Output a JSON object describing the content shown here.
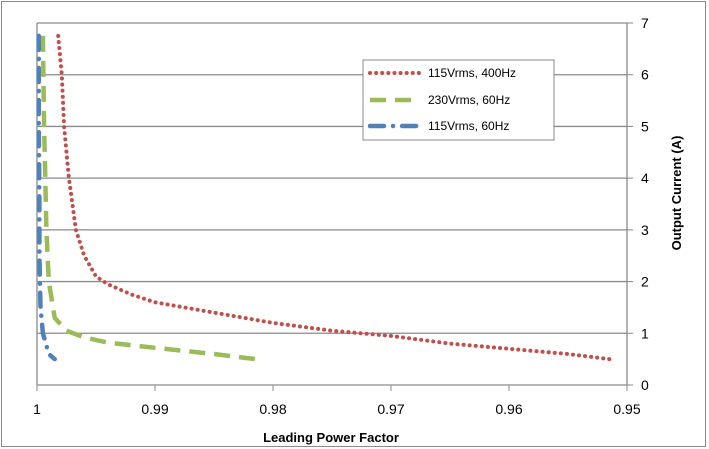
{
  "chart_data": {
    "type": "line",
    "title": "",
    "xlabel": "Leading Power Factor",
    "ylabel": "Output Current (A)",
    "xlim": [
      1.0,
      0.95
    ],
    "ylim": [
      0,
      7
    ],
    "x_reversed": true,
    "y_axis_side": "right",
    "grid": {
      "horizontal": true,
      "vertical": false
    },
    "legend_position": "top-right",
    "x_ticks": [
      "1",
      "0.99",
      "0.98",
      "0.97",
      "0.96",
      "0.95"
    ],
    "x_tick_values": [
      1.0,
      0.99,
      0.98,
      0.97,
      0.96,
      0.95
    ],
    "y_ticks": [
      "0",
      "1",
      "2",
      "3",
      "4",
      "5",
      "6",
      "7"
    ],
    "y_tick_values": [
      0,
      1,
      2,
      3,
      4,
      5,
      6,
      7
    ],
    "series": [
      {
        "name": "115Vrms, 400Hz",
        "color": "#c0504d",
        "style": "dotted",
        "points": [
          [
            0.9982,
            6.75
          ],
          [
            0.9979,
            6.0
          ],
          [
            0.9977,
            5.0
          ],
          [
            0.9975,
            4.5
          ],
          [
            0.9973,
            4.0
          ],
          [
            0.997,
            3.5
          ],
          [
            0.9967,
            3.0
          ],
          [
            0.996,
            2.5
          ],
          [
            0.995,
            2.1
          ],
          [
            0.994,
            1.95
          ],
          [
            0.992,
            1.75
          ],
          [
            0.99,
            1.6
          ],
          [
            0.985,
            1.4
          ],
          [
            0.98,
            1.2
          ],
          [
            0.975,
            1.05
          ],
          [
            0.97,
            0.95
          ],
          [
            0.965,
            0.8
          ],
          [
            0.96,
            0.7
          ],
          [
            0.955,
            0.6
          ],
          [
            0.9515,
            0.5
          ]
        ]
      },
      {
        "name": "230Vrms, 60Hz",
        "color": "#9bbb59",
        "style": "dashed",
        "points": [
          [
            0.9995,
            6.75
          ],
          [
            0.9994,
            5.0
          ],
          [
            0.9993,
            4.0
          ],
          [
            0.9992,
            3.0
          ],
          [
            0.999,
            2.0
          ],
          [
            0.9985,
            1.3
          ],
          [
            0.9975,
            1.05
          ],
          [
            0.996,
            0.92
          ],
          [
            0.994,
            0.82
          ],
          [
            0.99,
            0.72
          ],
          [
            0.985,
            0.6
          ],
          [
            0.9815,
            0.5
          ]
        ]
      },
      {
        "name": "115Vrms, 60Hz",
        "color": "#4f81bd",
        "style": "dashdot",
        "points": [
          [
            0.99985,
            6.75
          ],
          [
            0.99985,
            5.0
          ],
          [
            0.9998,
            3.5
          ],
          [
            0.9998,
            2.5
          ],
          [
            0.9997,
            1.5
          ],
          [
            0.9995,
            1.0
          ],
          [
            0.999,
            0.6
          ],
          [
            0.9985,
            0.5
          ]
        ]
      }
    ]
  },
  "colors": {
    "grid": "#8a8a8a",
    "axis": "#8a8a8a",
    "frame": "#8a8a8a"
  }
}
